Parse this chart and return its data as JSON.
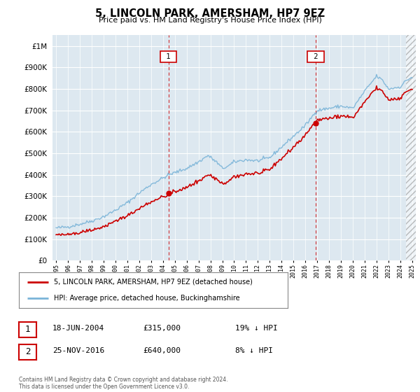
{
  "title": "5, LINCOLN PARK, AMERSHAM, HP7 9EZ",
  "subtitle": "Price paid vs. HM Land Registry's House Price Index (HPI)",
  "legend_line1": "5, LINCOLN PARK, AMERSHAM, HP7 9EZ (detached house)",
  "legend_line2": "HPI: Average price, detached house, Buckinghamshire",
  "sale1_date": "18-JUN-2004",
  "sale1_price": 315000,
  "sale1_label": "19% ↓ HPI",
  "sale2_date": "25-NOV-2016",
  "sale2_price": 640000,
  "sale2_label": "8% ↓ HPI",
  "footer": "Contains HM Land Registry data © Crown copyright and database right 2024.\nThis data is licensed under the Open Government Licence v3.0.",
  "ylim": [
    0,
    1050000
  ],
  "hpi_color": "#7ab4d8",
  "price_color": "#cc0000",
  "sale_vline_color": "#cc0000",
  "background_color": "#ffffff",
  "plot_bg_color": "#dde8f0"
}
